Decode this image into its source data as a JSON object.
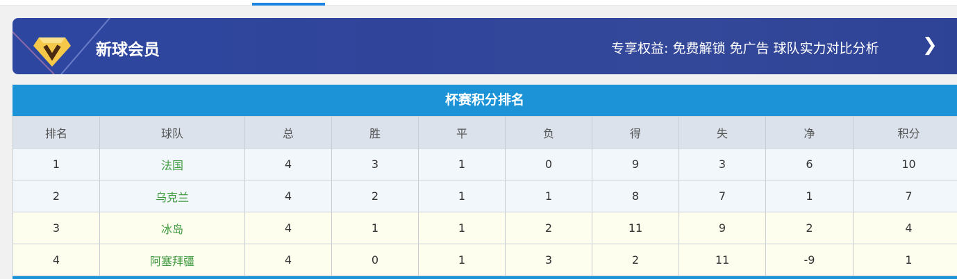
{
  "banner": {
    "title": "新球会员",
    "perks": "专享权益: 免费解锁 免广告 球队实力对比分析",
    "chevron_icon": "chevron-right-icon",
    "logo_icon": "diamond-v-icon"
  },
  "table": {
    "title": "杯赛积分排名",
    "headers": [
      "排名",
      "球队",
      "总",
      "胜",
      "平",
      "负",
      "得",
      "失",
      "净",
      "积分"
    ],
    "rows": [
      [
        "1",
        "法国",
        "4",
        "3",
        "1",
        "0",
        "9",
        "3",
        "6",
        "10"
      ],
      [
        "2",
        "乌克兰",
        "4",
        "2",
        "1",
        "1",
        "8",
        "7",
        "1",
        "7"
      ],
      [
        "3",
        "冰岛",
        "4",
        "1",
        "1",
        "2",
        "11",
        "9",
        "2",
        "4"
      ],
      [
        "4",
        "阿塞拜疆",
        "4",
        "0",
        "1",
        "3",
        "2",
        "11",
        "-9",
        "1"
      ]
    ]
  },
  "colors": {
    "header_bar": "#1b93d6",
    "banner": "#2d46a0",
    "team_text": "#3f9a3f"
  }
}
